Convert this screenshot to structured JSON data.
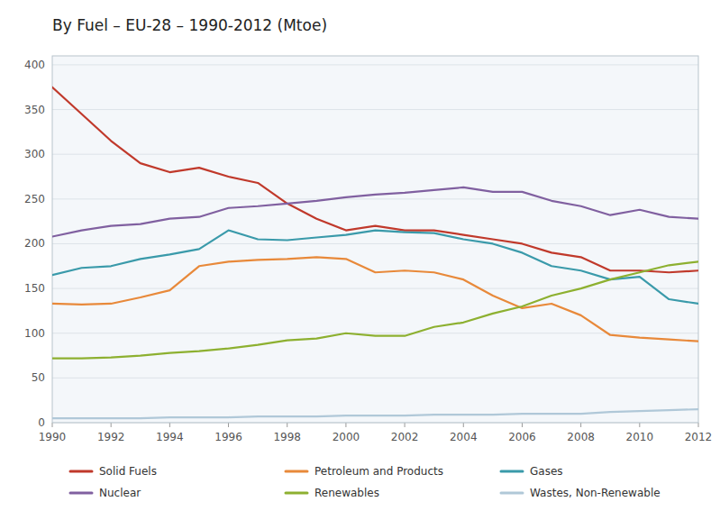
{
  "chart_data": {
    "type": "line",
    "title": "By Fuel – EU-28 – 1990-2012 (Mtoe)",
    "x": [
      1990,
      1991,
      1992,
      1993,
      1994,
      1995,
      1996,
      1997,
      1998,
      1999,
      2000,
      2001,
      2002,
      2003,
      2004,
      2005,
      2006,
      2007,
      2008,
      2009,
      2010,
      2011,
      2012
    ],
    "series": [
      {
        "name": "Solid Fuels",
        "color": "#c0392b",
        "values": [
          375,
          345,
          315,
          290,
          280,
          285,
          275,
          268,
          245,
          228,
          215,
          220,
          215,
          215,
          210,
          205,
          200,
          190,
          185,
          170,
          170,
          168,
          170
        ]
      },
      {
        "name": "Petroleum and Products",
        "color": "#e8893a",
        "values": [
          133,
          132,
          133,
          140,
          148,
          175,
          180,
          182,
          183,
          185,
          183,
          168,
          170,
          168,
          160,
          142,
          128,
          133,
          120,
          98,
          95,
          93,
          91
        ]
      },
      {
        "name": "Gases",
        "color": "#3a9aaa",
        "values": [
          165,
          173,
          175,
          183,
          188,
          194,
          215,
          205,
          204,
          207,
          210,
          215,
          213,
          212,
          205,
          200,
          190,
          175,
          170,
          160,
          163,
          138,
          133
        ]
      },
      {
        "name": "Nuclear",
        "color": "#8060a0",
        "values": [
          208,
          215,
          220,
          222,
          228,
          230,
          240,
          242,
          245,
          248,
          252,
          255,
          257,
          260,
          263,
          258,
          258,
          248,
          242,
          232,
          238,
          230,
          228
        ]
      },
      {
        "name": "Renewables",
        "color": "#8db030",
        "values": [
          72,
          72,
          73,
          75,
          78,
          80,
          83,
          87,
          92,
          94,
          100,
          97,
          97,
          107,
          112,
          122,
          130,
          142,
          150,
          160,
          168,
          176,
          180
        ]
      },
      {
        "name": "Wastes, Non-Renewable",
        "color": "#b0c8d8",
        "values": [
          5,
          5,
          5,
          5,
          6,
          6,
          6,
          7,
          7,
          7,
          8,
          8,
          8,
          9,
          9,
          9,
          10,
          10,
          10,
          12,
          13,
          14,
          15
        ]
      }
    ],
    "xlim": [
      1990,
      2012
    ],
    "xticks": [
      1990,
      1992,
      1994,
      1996,
      1998,
      2000,
      2002,
      2004,
      2006,
      2008,
      2010,
      2012
    ],
    "ylim": [
      0,
      410
    ],
    "yticks": [
      0,
      50,
      100,
      150,
      200,
      250,
      300,
      350,
      400
    ],
    "grid": true,
    "legend": "bottom"
  }
}
